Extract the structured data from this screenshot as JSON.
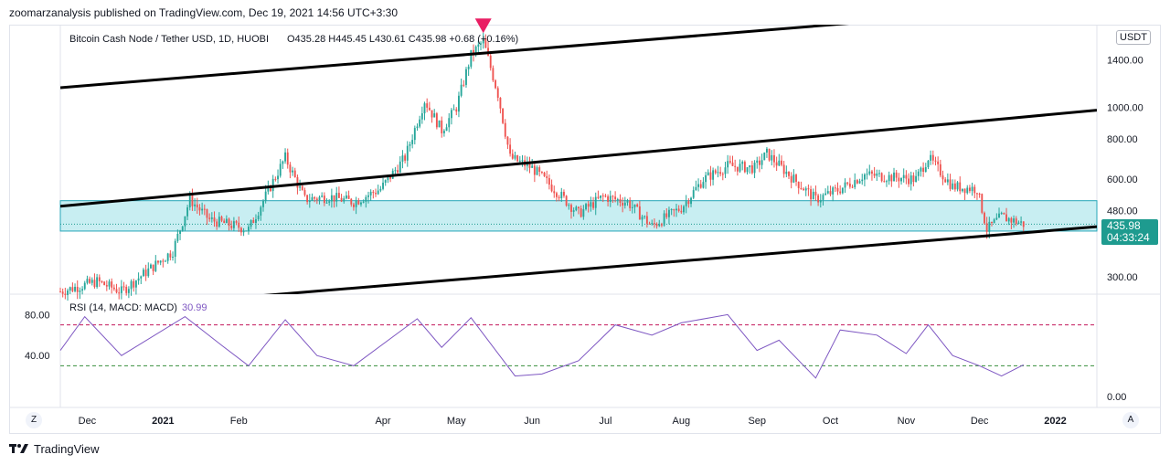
{
  "header": {
    "published": "zoomarzanalysis published on TradingView.com, Dec 19, 2021 14:56 UTC+3:30"
  },
  "legend": {
    "symbol": "Bitcoin Cash Node / Tether USD, 1D, HUOBI",
    "ohlc": "O435.28  H445.45  L430.61  C435.98  +0.68 (+0.16%)",
    "rsi": "RSI (14, MACD: MACD)",
    "rsi_value": "30.99"
  },
  "currency_badge": "USDT",
  "price_tag": {
    "price": "435.98",
    "countdown": "04:33:24"
  },
  "buttons": {
    "z": "Z",
    "a": "A"
  },
  "footer": {
    "brand": "TradingView"
  },
  "colors": {
    "up": "#26a69a",
    "down": "#ef5350",
    "channel": "#000000",
    "zone": "#c8eef2",
    "rsi_line": "#7e57c2",
    "rsi_upper": "#c2185b",
    "rsi_lower": "#388e3c",
    "marker": "#e91e63"
  },
  "chart_data": {
    "type": "candlestick",
    "price_axis_labels": [
      "1400.00",
      "1000.00",
      "800.00",
      "600.00",
      "480.00",
      "300.00"
    ],
    "price_axis_values": [
      1400,
      1000,
      800,
      600,
      480,
      300
    ],
    "price_axis_scale": "log",
    "ylim": [
      265,
      1800
    ],
    "time_axis_labels": [
      "Dec",
      "2021",
      "Feb",
      "Apr",
      "May",
      "Jun",
      "Jul",
      "Aug",
      "Sep",
      "Oct",
      "Nov",
      "Dec",
      "2022"
    ],
    "time_axis_dates": [
      "2020-12-01",
      "2021-01-01",
      "2021-02-01",
      "2021-04-01",
      "2021-05-01",
      "2021-06-01",
      "2021-07-01",
      "2021-08-01",
      "2021-09-01",
      "2021-10-01",
      "2021-11-01",
      "2021-12-01",
      "2022-01-01"
    ],
    "xlim": [
      "2020-11-20",
      "2022-01-18"
    ],
    "last_close": 435.98,
    "peak": {
      "date": "2021-05-12",
      "price": 1630
    },
    "price_path": [
      [
        "2020-11-20",
        270
      ],
      [
        "2020-12-05",
        290
      ],
      [
        "2020-12-15",
        270
      ],
      [
        "2020-12-25",
        310
      ],
      [
        "2021-01-05",
        360
      ],
      [
        "2021-01-12",
        520
      ],
      [
        "2021-01-20",
        450
      ],
      [
        "2021-02-05",
        420
      ],
      [
        "2021-02-20",
        700
      ],
      [
        "2021-02-28",
        520
      ],
      [
        "2021-03-10",
        530
      ],
      [
        "2021-03-20",
        510
      ],
      [
        "2021-03-31",
        560
      ],
      [
        "2021-04-10",
        700
      ],
      [
        "2021-04-18",
        1050
      ],
      [
        "2021-04-25",
        850
      ],
      [
        "2021-05-01",
        1000
      ],
      [
        "2021-05-07",
        1450
      ],
      [
        "2021-05-12",
        1600
      ],
      [
        "2021-05-18",
        1100
      ],
      [
        "2021-05-23",
        700
      ],
      [
        "2021-06-01",
        650
      ],
      [
        "2021-06-10",
        560
      ],
      [
        "2021-06-20",
        470
      ],
      [
        "2021-06-30",
        530
      ],
      [
        "2021-07-10",
        510
      ],
      [
        "2021-07-20",
        430
      ],
      [
        "2021-08-01",
        490
      ],
      [
        "2021-08-10",
        600
      ],
      [
        "2021-08-20",
        660
      ],
      [
        "2021-08-31",
        650
      ],
      [
        "2021-09-05",
        720
      ],
      [
        "2021-09-15",
        610
      ],
      [
        "2021-09-25",
        520
      ],
      [
        "2021-10-05",
        560
      ],
      [
        "2021-10-15",
        620
      ],
      [
        "2021-10-25",
        610
      ],
      [
        "2021-11-05",
        600
      ],
      [
        "2021-11-10",
        700
      ],
      [
        "2021-11-20",
        570
      ],
      [
        "2021-11-30",
        560
      ],
      [
        "2021-12-04",
        420
      ],
      [
        "2021-12-10",
        460
      ],
      [
        "2021-12-19",
        436
      ]
    ],
    "resistance_zone": [
      415,
      515
    ],
    "channel_lines": [
      {
        "name": "upper",
        "from": [
          "2020-11-20",
          1150
        ],
        "to": [
          "2021-11-20",
          1930
        ]
      },
      {
        "name": "middle",
        "from": [
          "2020-11-20",
          495
        ],
        "to": [
          "2022-01-18",
          980
        ]
      },
      {
        "name": "lower",
        "from": [
          "2021-02-10",
          262
        ],
        "to": [
          "2022-01-18",
          428
        ]
      }
    ],
    "rsi": {
      "axis_labels": [
        "80.00",
        "40.00",
        "0.00"
      ],
      "axis_values": [
        80,
        40,
        0
      ],
      "levels": [
        70,
        30
      ],
      "value": 30.99,
      "path": [
        [
          "2020-11-20",
          45
        ],
        [
          "2020-11-30",
          78
        ],
        [
          "2020-12-15",
          40
        ],
        [
          "2021-01-10",
          78
        ],
        [
          "2021-01-25",
          50
        ],
        [
          "2021-02-05",
          30
        ],
        [
          "2021-02-20",
          75
        ],
        [
          "2021-03-05",
          40
        ],
        [
          "2021-03-20",
          30
        ],
        [
          "2021-04-15",
          76
        ],
        [
          "2021-04-25",
          48
        ],
        [
          "2021-05-07",
          77
        ],
        [
          "2021-05-25",
          20
        ],
        [
          "2021-06-05",
          22
        ],
        [
          "2021-06-20",
          35
        ],
        [
          "2021-07-05",
          70
        ],
        [
          "2021-07-20",
          60
        ],
        [
          "2021-08-01",
          72
        ],
        [
          "2021-08-20",
          80
        ],
        [
          "2021-09-01",
          45
        ],
        [
          "2021-09-10",
          55
        ],
        [
          "2021-09-25",
          18
        ],
        [
          "2021-10-05",
          65
        ],
        [
          "2021-10-20",
          60
        ],
        [
          "2021-11-01",
          42
        ],
        [
          "2021-11-10",
          70
        ],
        [
          "2021-11-20",
          40
        ],
        [
          "2021-12-01",
          30
        ],
        [
          "2021-12-10",
          20
        ],
        [
          "2021-12-19",
          31
        ]
      ]
    }
  }
}
